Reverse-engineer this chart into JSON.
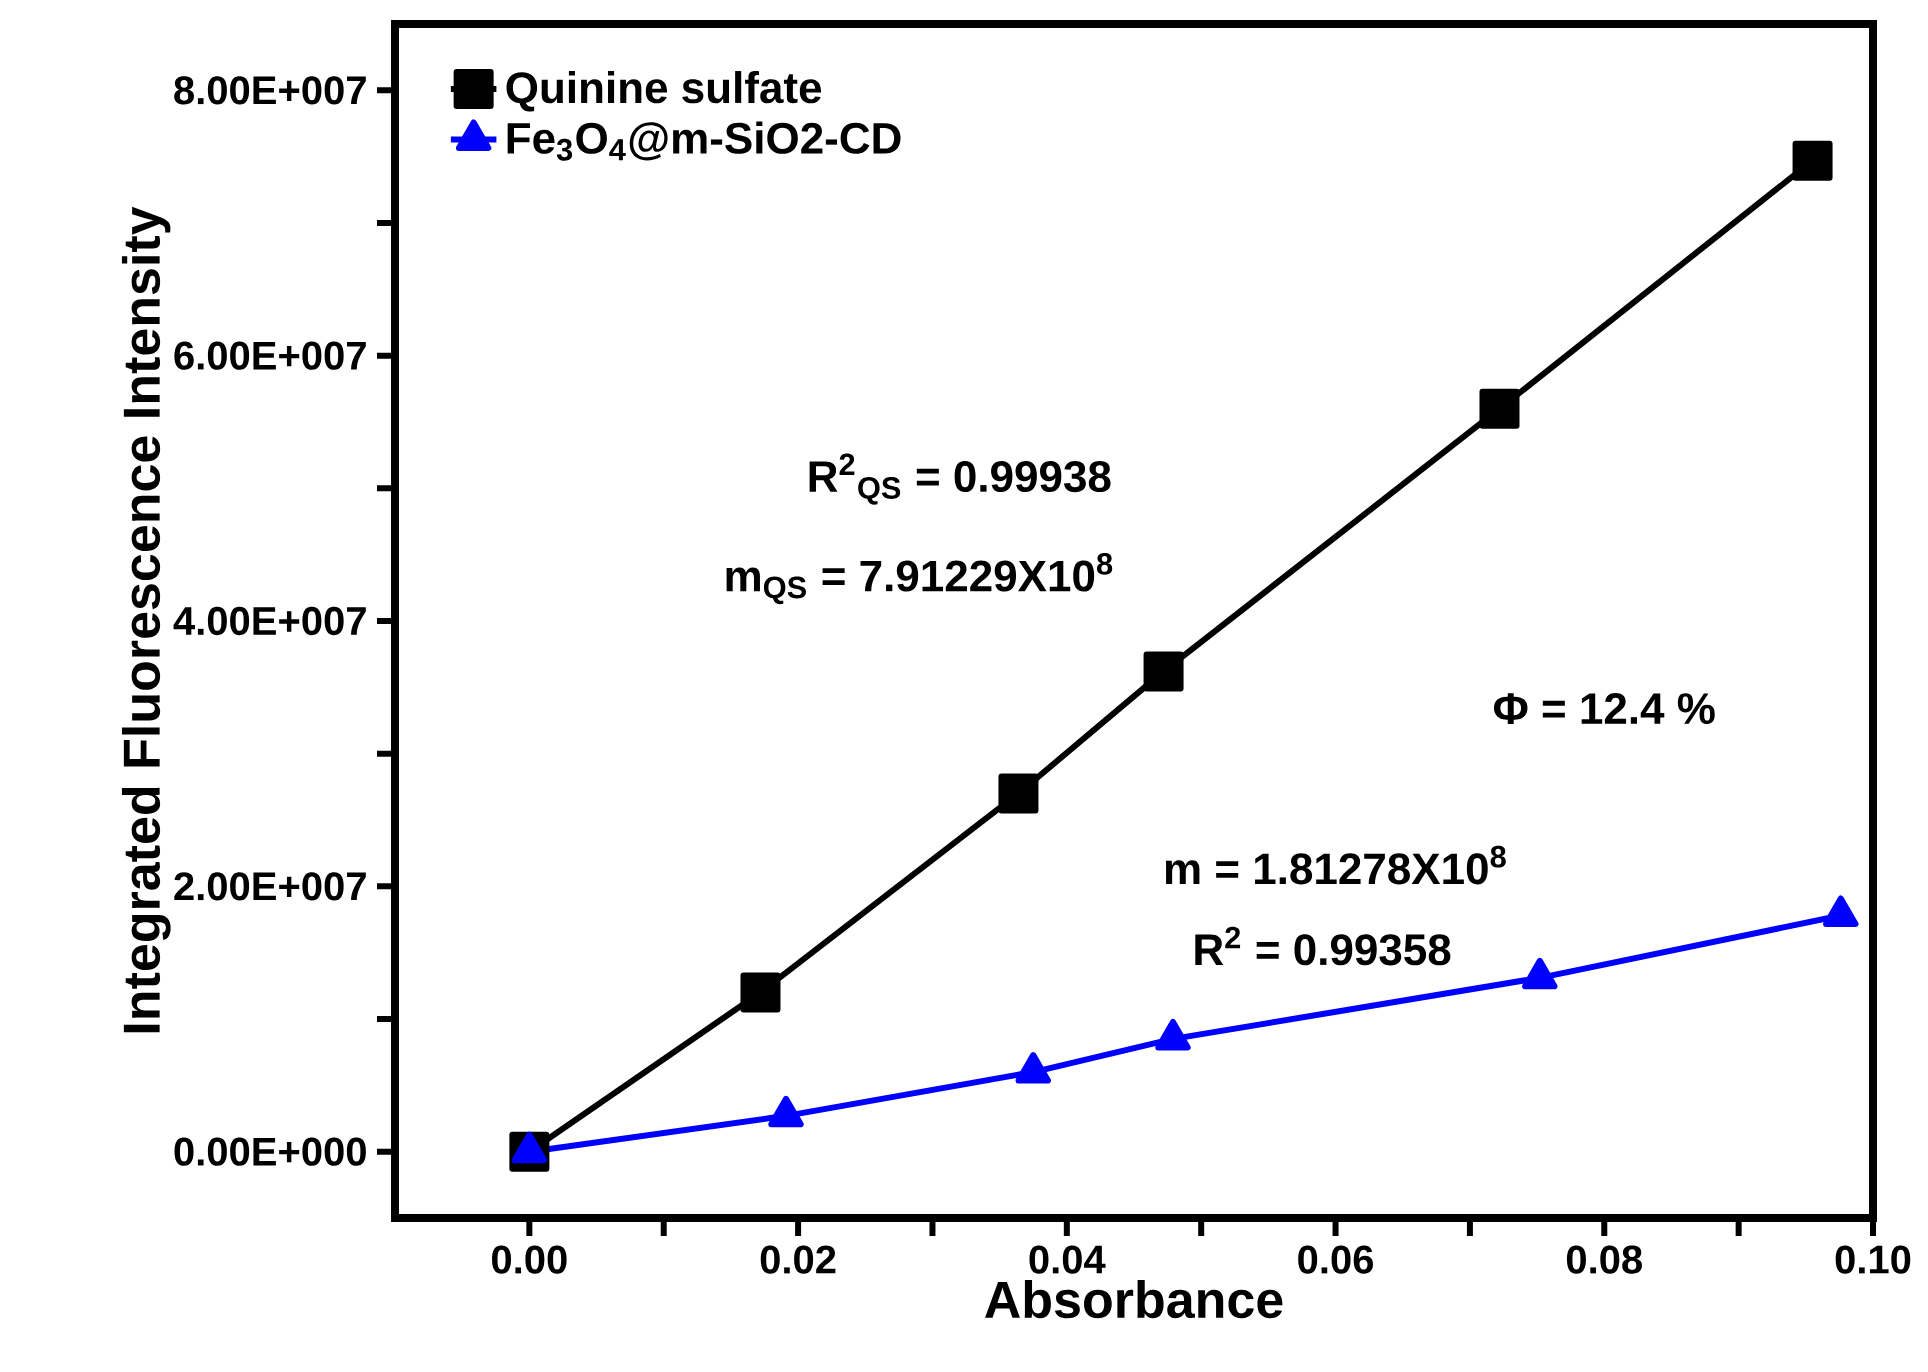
{
  "chart_data": {
    "type": "line",
    "xlabel": "Absorbance",
    "ylabel": "Integrated Fluorescence Intensity",
    "xlim": [
      -0.01,
      0.1
    ],
    "ylim": [
      -5000000,
      85000000
    ],
    "xticks": [
      {
        "value": 0,
        "label": "0.00"
      },
      {
        "value": 0.01,
        "label": null
      },
      {
        "value": 0.02,
        "label": "0.02"
      },
      {
        "value": 0.03,
        "label": null
      },
      {
        "value": 0.04,
        "label": "0.04"
      },
      {
        "value": 0.05,
        "label": null
      },
      {
        "value": 0.06,
        "label": "0.06"
      },
      {
        "value": 0.07,
        "label": null
      },
      {
        "value": 0.08,
        "label": "0.08"
      },
      {
        "value": 0.09,
        "label": null
      },
      {
        "value": 0.1,
        "label": "0.10"
      }
    ],
    "yticks": [
      {
        "value": 0,
        "label": "0.00E+000"
      },
      {
        "value": 10000000,
        "label": null
      },
      {
        "value": 20000000,
        "label": "2.00E+007"
      },
      {
        "value": 30000000,
        "label": null
      },
      {
        "value": 40000000,
        "label": "4.00E+007"
      },
      {
        "value": 50000000,
        "label": null
      },
      {
        "value": 60000000,
        "label": "6.00E+007"
      },
      {
        "value": 70000000,
        "label": null
      },
      {
        "value": 80000000,
        "label": "8.00E+007"
      }
    ],
    "series": [
      {
        "name": "Quinine sulfate",
        "color": "#000000",
        "marker": "square",
        "x": [
          0,
          0.0172,
          0.0364,
          0.0472,
          0.0722,
          0.0955
        ],
        "values": [
          0,
          12000000,
          27000000,
          36200000,
          56000000,
          74700000
        ]
      },
      {
        "name": "Fe$_{3}$O$_{4}$@m-SiO2-CD",
        "color": "#0000ff",
        "marker": "triangle",
        "x": [
          0,
          0.0191,
          0.0375,
          0.0479,
          0.0752,
          0.0976
        ],
        "values": [
          0,
          2700000,
          6000000,
          8500000,
          13100000,
          17800000
        ]
      }
    ],
    "annotations": [
      "R$^{2}$$_{QS}$ = 0.99938",
      "m$_{QS}$ = 7.91229X10$^{8}$",
      "Φ = 12.4 %",
      "m = 1.81278X10$^{8}$",
      "R$^{2}$ = 0.99358"
    ],
    "legend": "top left",
    "grid": false,
    "line_style": "solid"
  }
}
